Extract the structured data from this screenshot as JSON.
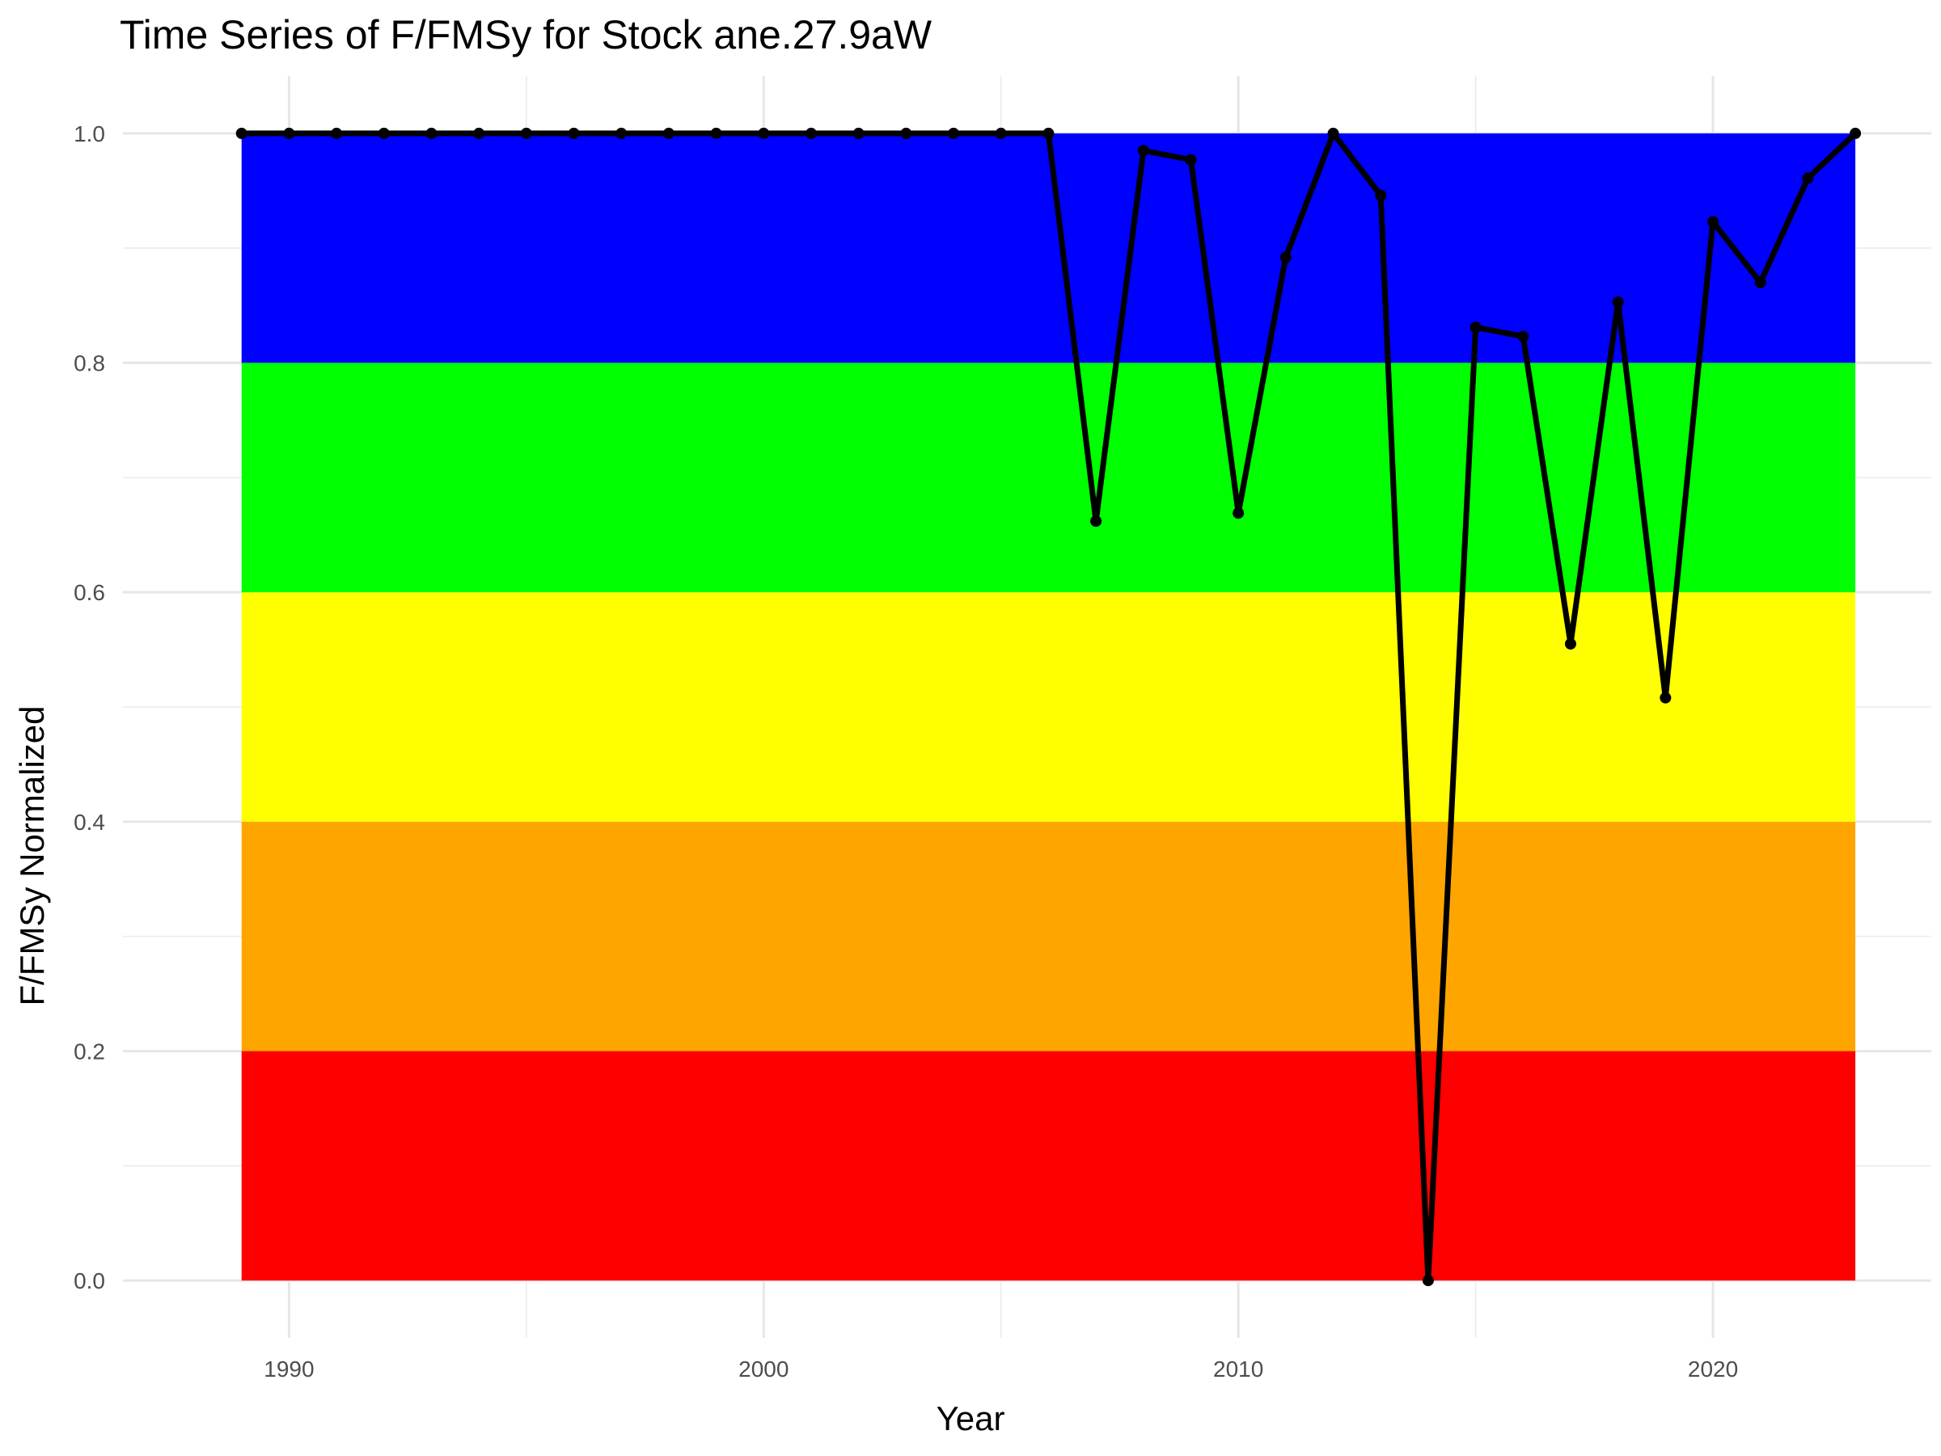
{
  "chart_data": {
    "type": "line",
    "title": "Time Series of F/FMSy for Stock ane.27.9aW",
    "xlabel": "Year",
    "ylabel": "F/FMSy Normalized",
    "xlim": [
      1986.5,
      2024.6
    ],
    "ylim": [
      -0.05,
      1.05
    ],
    "x_ticks": [
      1990,
      2000,
      2010,
      2020
    ],
    "x_tick_labels": [
      "1990",
      "2000",
      "2010",
      "2020"
    ],
    "y_ticks": [
      0.0,
      0.2,
      0.4,
      0.6,
      0.8,
      1.0
    ],
    "y_tick_labels": [
      "0.0",
      "0.2",
      "0.4",
      "0.6",
      "0.8",
      "1.0"
    ],
    "grid": true,
    "bands": [
      {
        "from": 0.0,
        "to": 0.2,
        "color": "#ff0000"
      },
      {
        "from": 0.2,
        "to": 0.4,
        "color": "#ffa500"
      },
      {
        "from": 0.4,
        "to": 0.6,
        "color": "#ffff00"
      },
      {
        "from": 0.6,
        "to": 0.8,
        "color": "#00ff00"
      },
      {
        "from": 0.8,
        "to": 1.0,
        "color": "#0000ff"
      }
    ],
    "band_x_range": [
      1989,
      2023
    ],
    "series": [
      {
        "color": "#000000",
        "x": [
          1989,
          1990,
          1991,
          1992,
          1993,
          1994,
          1995,
          1996,
          1997,
          1998,
          1999,
          2000,
          2001,
          2002,
          2003,
          2004,
          2005,
          2006,
          2007,
          2008,
          2009,
          2010,
          2011,
          2012,
          2013,
          2014,
          2015,
          2016,
          2017,
          2018,
          2019,
          2020,
          2021,
          2022,
          2023
        ],
        "values": [
          1.0,
          1.0,
          1.0,
          1.0,
          1.0,
          1.0,
          1.0,
          1.0,
          1.0,
          1.0,
          1.0,
          1.0,
          1.0,
          1.0,
          1.0,
          1.0,
          1.0,
          1.0,
          0.662,
          0.985,
          0.977,
          0.669,
          0.892,
          1.0,
          0.946,
          0.0,
          0.831,
          0.823,
          0.555,
          0.853,
          0.508,
          0.923,
          0.87,
          0.961,
          1.0
        ]
      }
    ]
  }
}
